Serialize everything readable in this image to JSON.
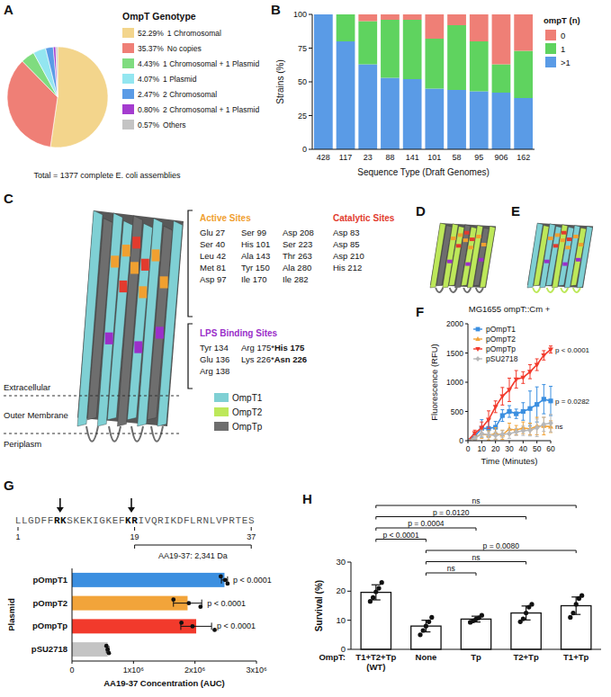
{
  "chart_data": [
    {
      "panel": "A",
      "type": "pie",
      "title": "OmpT Genotype",
      "categories": [
        "1 Chromosomal",
        "No copies",
        "1 Chromosomal + 1 Plasmid",
        "1 Plasmid",
        "2 Chromosomal",
        "2 Chromosomal + 1 Plasmid",
        "Others"
      ],
      "values": [
        52.29,
        35.37,
        4.43,
        4.07,
        2.47,
        0.8,
        0.57
      ],
      "value_labels": [
        "52.29%",
        "35.37%",
        "4.43%",
        "4.07%",
        "2.47%",
        "0.80%",
        "0.57%"
      ],
      "colors": [
        "#f3d58c",
        "#ef7f76",
        "#7fdc7f",
        "#93e6f0",
        "#5a9be6",
        "#a43ccf",
        "#c4c4c4"
      ],
      "legend": "right",
      "annotations": [
        "Total = 1377 complete E. coli assemblies"
      ]
    },
    {
      "panel": "B",
      "type": "bar",
      "stacked": true,
      "categories": [
        "428",
        "117",
        "23",
        "88",
        "141",
        "101",
        "58",
        "95",
        "906",
        "162"
      ],
      "series": [
        {
          "name": ">1",
          "color": "#5a9be6",
          "values": [
            100,
            80,
            63,
            53,
            52,
            45,
            44,
            43,
            42,
            38
          ]
        },
        {
          "name": "1",
          "color": "#5fd35f",
          "values": [
            0,
            20,
            32,
            43,
            44,
            37,
            48,
            37,
            21,
            35
          ]
        },
        {
          "name": "0",
          "color": "#ef7f76",
          "values": [
            0,
            0,
            5,
            4,
            4,
            18,
            8,
            20,
            37,
            27
          ]
        }
      ],
      "ylim": [
        0,
        100
      ],
      "yticks": [
        0,
        25,
        50,
        75,
        100
      ],
      "y_label": "Strains (%)",
      "x_label": "Sequence Type (Draft Genomes)",
      "legend_title": "ompT (n)",
      "legend": "right"
    },
    {
      "panel": "F",
      "type": "line",
      "title": "MG1655 ompT::Cm +",
      "x": [
        0,
        5,
        10,
        15,
        20,
        25,
        30,
        35,
        40,
        45,
        50,
        55,
        60
      ],
      "series": [
        {
          "name": "pOmpT1",
          "color": "#3b8fe0",
          "marker": "square",
          "values": [
            0,
            80,
            210,
            210,
            230,
            430,
            500,
            460,
            500,
            550,
            620,
            710,
            680
          ],
          "errors": [
            0,
            60,
            150,
            150,
            100,
            100,
            100,
            80,
            150,
            300,
            300,
            250,
            250
          ],
          "annotation": "p = 0.0282"
        },
        {
          "name": "pOmpT2",
          "color": "#f2a43a",
          "marker": "triangle-up",
          "values": [
            0,
            50,
            120,
            90,
            120,
            100,
            200,
            180,
            220,
            200,
            250,
            250,
            240
          ],
          "errors": [
            0,
            40,
            80,
            80,
            100,
            80,
            100,
            80,
            100,
            100,
            150,
            150,
            100
          ],
          "annotation": "ns"
        },
        {
          "name": "pOmpTp",
          "color": "#f23a2c",
          "marker": "triangle-down",
          "values": [
            0,
            130,
            220,
            360,
            580,
            760,
            870,
            1050,
            1080,
            1180,
            1300,
            1460,
            1560
          ],
          "errors": [
            0,
            50,
            100,
            150,
            100,
            150,
            200,
            150,
            100,
            120,
            100,
            80,
            60
          ],
          "annotation": "p < 0.0001"
        },
        {
          "name": "pSU2718",
          "color": "#b8b8b8",
          "marker": "diamond",
          "values": [
            0,
            40,
            120,
            100,
            90,
            110,
            120,
            150,
            170,
            180,
            220,
            280,
            300
          ],
          "errors": [
            0,
            40,
            60,
            50,
            60,
            60,
            80,
            60,
            80,
            100,
            150,
            120,
            150
          ]
        }
      ],
      "xlim": [
        0,
        60
      ],
      "xticks": [
        0,
        10,
        20,
        30,
        40,
        50,
        60
      ],
      "ylim": [
        0,
        2000
      ],
      "yticks": [
        0,
        500,
        1000,
        1500,
        2000
      ],
      "x_label": "Time (Minutes)",
      "y_label": "Fluorescence (RFU)",
      "legend": "upper left"
    },
    {
      "panel": "G",
      "type": "bar",
      "orientation": "horizontal",
      "sequence": {
        "residues": "LLGDFFRKSKEKIGKEFKRIVQRIKDFLRNLVPRTES",
        "cleavage_sites": [
          [
            7,
            8
          ],
          [
            18,
            19
          ]
        ],
        "position_ticks": [
          1,
          19,
          37
        ],
        "fragment": [
          19,
          37
        ],
        "fragment_label": "AA19-37: 2,341 Da"
      },
      "categories": [
        "pOmpT1",
        "pOmpT2",
        "pOmpTp",
        "pSU2718"
      ],
      "values": [
        2480000,
        1880000,
        2020000,
        580000
      ],
      "errors": [
        50000,
        230000,
        250000,
        20000
      ],
      "points": [
        [
          2420000,
          2490000,
          2530000
        ],
        [
          1650000,
          1900000,
          2090000
        ],
        [
          1780000,
          1960000,
          2320000
        ],
        [
          560000,
          580000,
          600000
        ]
      ],
      "colors": [
        "#3b8fe0",
        "#f2a43a",
        "#f23a2c",
        "#c4c4c4"
      ],
      "annotations": [
        "p < 0.0001",
        "p < 0.0001",
        "p < 0.0001",
        null
      ],
      "xlim": [
        0,
        3000000
      ],
      "xticks": [
        0,
        {
          "value": 1000000,
          "label": "1x10⁶"
        },
        {
          "value": 2000000,
          "label": "2x10⁶"
        },
        {
          "value": 3000000,
          "label": "3x10⁶"
        }
      ],
      "x_label": "AA19-37 Concentration (AUC)",
      "y_label": "Plasmid"
    },
    {
      "panel": "H",
      "type": "bar",
      "categories": [
        "T1+T2+Tp (WT)",
        "None",
        "Tp",
        "T2+Tp",
        "T1+Tp"
      ],
      "values": [
        19.6,
        8,
        10.4,
        12.5,
        15
      ],
      "errors": [
        2.6,
        2,
        1,
        2.4,
        3
      ],
      "points": [
        [
          16.5,
          17.8,
          19.8,
          21,
          23
        ],
        [
          5,
          6.5,
          8,
          9.5,
          11
        ],
        [
          9.3,
          9.8,
          10.4,
          10.8,
          11.7
        ],
        [
          9.5,
          10.5,
          12.5,
          14.5,
          15.5
        ],
        [
          11,
          12.5,
          15.5,
          17.5,
          18.5
        ]
      ],
      "color": "#ffffff",
      "ylim": [
        0,
        30
      ],
      "yticks": [
        0,
        10,
        20,
        30
      ],
      "y_label": "Survival (%)",
      "x_label": "OmpT:",
      "comparisons": [
        {
          "pair": [
            1,
            2
          ],
          "label": "ns"
        },
        {
          "pair": [
            1,
            3
          ],
          "label": "ns"
        },
        {
          "pair": [
            1,
            4
          ],
          "label": "p = 0.0080"
        },
        {
          "pair": [
            0,
            1
          ],
          "label": "p < 0.0001"
        },
        {
          "pair": [
            0,
            2
          ],
          "label": "p = 0.0004"
        },
        {
          "pair": [
            0,
            3
          ],
          "label": "p = 0.0120"
        },
        {
          "pair": [
            0,
            4
          ],
          "label": "ns"
        }
      ]
    }
  ],
  "diagram": {
    "panel_labels": [
      "C",
      "D",
      "E"
    ],
    "sections": [
      {
        "title": "Active Sites",
        "color": "#f0a030",
        "columns": [
          [
            "Glu 27",
            "Ser 40",
            "Leu 42",
            "Met 81",
            "Asp 97"
          ],
          [
            "Ser 99",
            "His 101",
            "Ala 143",
            "Tyr 150",
            "Ile 170"
          ],
          [
            "Asp 208",
            "Ser 223",
            "Thr 263",
            "Ala 280",
            "Ile 282"
          ]
        ]
      },
      {
        "title": "Catalytic Sites",
        "color": "#e23b2e",
        "columns": [
          [
            "Asp 83",
            "Asp 85",
            "Asp 210",
            "His 212"
          ]
        ]
      },
      {
        "title": "LPS Binding Sites",
        "color": "#9b2fc9",
        "columns": [
          [
            "Tyr 134",
            "Glu 136",
            "Arg 138"
          ],
          [
            {
              "text": "Arg 175*",
              "bold": "His 175"
            },
            {
              "text": "Lys 226*",
              "bold": "Asn 226"
            }
          ]
        ]
      }
    ],
    "regions": [
      "Extracellular",
      "Outer Membrane",
      "Periplasm"
    ],
    "legend": [
      {
        "name": "OmpT1",
        "color": "#7fd0d4"
      },
      {
        "name": "OmpT2",
        "color": "#bde85a"
      },
      {
        "name": "OmpTp",
        "color": "#6e6e6e"
      }
    ]
  }
}
